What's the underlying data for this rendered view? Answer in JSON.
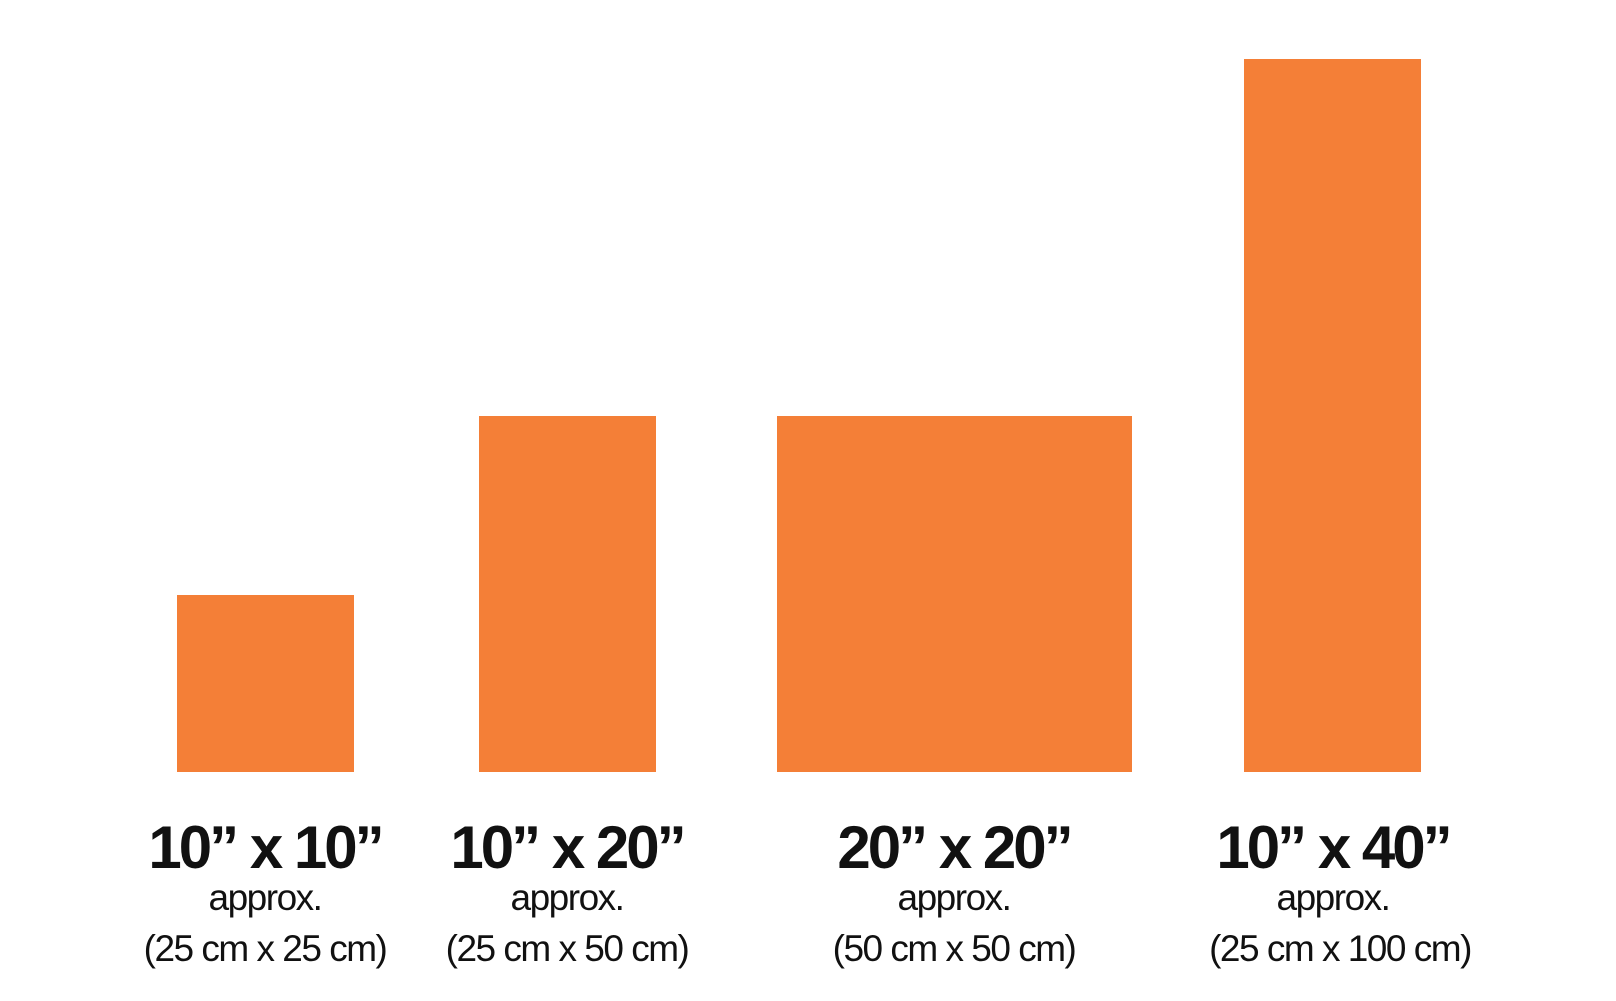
{
  "items": [
    {
      "label": "10” x 10”",
      "approx": "approx.",
      "metric": "(25 cm x 25 cm)"
    },
    {
      "label": "10” x 20”",
      "approx": "approx.",
      "metric": "(25 cm x 50 cm)"
    },
    {
      "label": "20” x 20”",
      "approx": "approx.",
      "metric": "(50 cm x 50 cm)"
    },
    {
      "label": "10” x 40”",
      "approx": "approx.",
      "metric": "(25 cm x 100 cm)"
    }
  ]
}
